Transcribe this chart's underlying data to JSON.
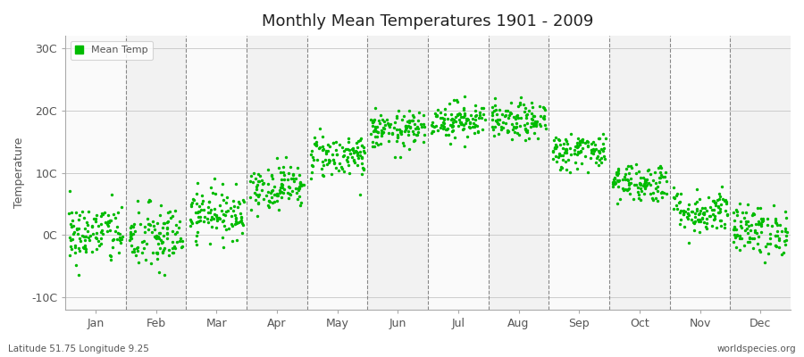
{
  "title": "Monthly Mean Temperatures 1901 - 2009",
  "ylabel": "Temperature",
  "subtitle_left": "Latitude 51.75 Longitude 9.25",
  "subtitle_right": "worldspecies.org",
  "legend_label": "Mean Temp",
  "dot_color": "#00bb00",
  "background_color": "#ffffff",
  "plot_bg_color": "#f2f2f2",
  "plot_bg_light": "#fafafa",
  "ytick_labels": [
    "-10C",
    "0C",
    "10C",
    "20C",
    "30C"
  ],
  "ytick_values": [
    -10,
    0,
    10,
    20,
    30
  ],
  "ylim": [
    -12,
    32
  ],
  "months": [
    "Jan",
    "Feb",
    "Mar",
    "Apr",
    "May",
    "Jun",
    "Jul",
    "Aug",
    "Sep",
    "Oct",
    "Nov",
    "Dec"
  ],
  "n_years": 109,
  "seed": 42,
  "mean_temps": [
    0.2,
    -0.5,
    3.5,
    7.8,
    12.8,
    16.8,
    18.5,
    18.2,
    13.5,
    8.5,
    3.8,
    0.8
  ],
  "std_temps": [
    2.5,
    2.8,
    2.0,
    1.8,
    1.8,
    1.5,
    1.5,
    1.5,
    1.5,
    1.6,
    1.8,
    2.0
  ],
  "grid_color": "#cccccc",
  "vline_color": "#888888",
  "spine_color": "#aaaaaa",
  "tick_label_color": "#555555",
  "title_color": "#222222",
  "ylabel_color": "#555555"
}
